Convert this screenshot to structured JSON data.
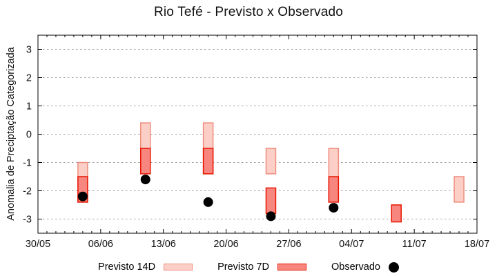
{
  "chart_data": {
    "type": "bar",
    "subtype": "forecast-range-bars-with-observed-scatter",
    "title": "Rio Tefé - Previsto x Observado",
    "xlabel": "",
    "ylabel": "Anomalia de Preciptação Categorizada",
    "ylim": [
      -3.5,
      3.5
    ],
    "y_ticks": [
      3,
      2,
      1,
      0,
      -1,
      -2,
      -3
    ],
    "x_tick_labels": [
      "30/05",
      "06/06",
      "13/06",
      "20/06",
      "27/06",
      "04/07",
      "11/07",
      "18/07"
    ],
    "x_tick_step_days": 7,
    "x_minor_tick_step_days": 1,
    "grid": "horizontal-dashed",
    "legend_position": "bottom-center",
    "legend": [
      {
        "label": "Previsto 14D",
        "marker": "box",
        "fill": "#FBCFC6",
        "stroke": "#EF8C7E"
      },
      {
        "label": "Previsto 7D",
        "marker": "box",
        "fill": "#F6867E",
        "stroke": "#E81500"
      },
      {
        "label": "Observado",
        "marker": "dot",
        "fill": "#000000"
      }
    ],
    "series": [
      {
        "date": "04/06",
        "day": 5,
        "previsto_14d": [
          -1.0,
          -2.4
        ],
        "previsto_7d": [
          -1.5,
          -2.4
        ],
        "observado": -2.2
      },
      {
        "date": "11/06",
        "day": 12,
        "previsto_14d": [
          0.4,
          -1.4
        ],
        "previsto_7d": [
          -0.5,
          -1.4
        ],
        "observado": -1.6
      },
      {
        "date": "18/06",
        "day": 19,
        "previsto_14d": [
          0.4,
          -1.4
        ],
        "previsto_7d": [
          -0.5,
          -1.4
        ],
        "observado": -2.4
      },
      {
        "date": "25/06",
        "day": 26,
        "previsto_14d": [
          -0.5,
          -1.4
        ],
        "previsto_7d": [
          -1.9,
          -2.8
        ],
        "observado": -2.9
      },
      {
        "date": "02/07",
        "day": 33,
        "previsto_14d": [
          -0.5,
          -2.4
        ],
        "previsto_7d": [
          -1.5,
          -2.4
        ],
        "observado": -2.6
      },
      {
        "date": "09/07",
        "day": 40,
        "previsto_14d": null,
        "previsto_7d": [
          -2.5,
          -3.1
        ],
        "observado": null
      },
      {
        "date": "16/07",
        "day": 47,
        "previsto_14d": [
          -1.5,
          -2.4
        ],
        "previsto_7d": null,
        "observado": null
      }
    ],
    "colors": {
      "background": "#FFFFFF",
      "axis": "#000000",
      "grid": "#A0A0A0",
      "tick_label": "#111111",
      "previsto_14d_fill": "#FBCFC6",
      "previsto_14d_stroke": "#EF8C7E",
      "previsto_7d_fill": "#F6867E",
      "previsto_7d_stroke": "#E81500",
      "observado_fill": "#000000"
    }
  }
}
